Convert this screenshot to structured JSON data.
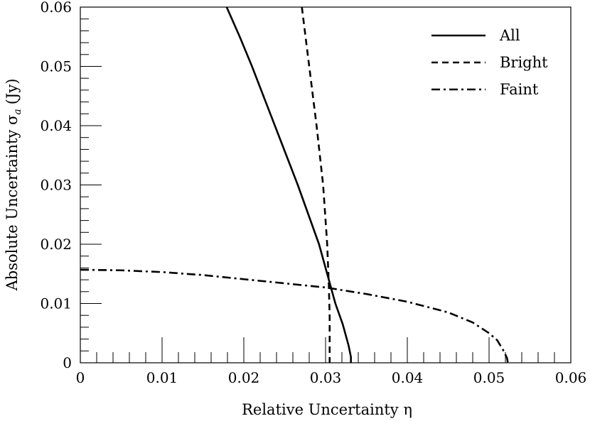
{
  "chart_data": {
    "type": "line",
    "xlabel": "Relative Uncertainty η",
    "ylabel": "Absolute Uncertainty σ",
    "ylabel_subscript": "a",
    "ylabel_unit": "(Jy)",
    "xlim": [
      0,
      0.06
    ],
    "ylim": [
      0,
      0.06
    ],
    "x_ticks": [
      "0",
      "0.01",
      "0.02",
      "0.03",
      "0.04",
      "0.05",
      "0.06"
    ],
    "y_ticks": [
      "0",
      "0.01",
      "0.02",
      "0.03",
      "0.04",
      "0.05",
      "0.06"
    ],
    "legend_position": "top-right",
    "grid": false,
    "series": [
      {
        "name": "All",
        "style": "solid",
        "color": "#000000",
        "points": [
          [
            0.0179,
            0.06
          ],
          [
            0.0195,
            0.055
          ],
          [
            0.021,
            0.05
          ],
          [
            0.0224,
            0.045
          ],
          [
            0.0238,
            0.04
          ],
          [
            0.0252,
            0.035
          ],
          [
            0.0266,
            0.03
          ],
          [
            0.0279,
            0.025
          ],
          [
            0.0292,
            0.02
          ],
          [
            0.0302,
            0.015
          ],
          [
            0.0307,
            0.0125
          ],
          [
            0.0312,
            0.01
          ],
          [
            0.0321,
            0.0065
          ],
          [
            0.0328,
            0.003
          ],
          [
            0.0331,
            0.001
          ],
          [
            0.0331,
            0.0
          ]
        ]
      },
      {
        "name": "Bright",
        "style": "dashed",
        "color": "#000000",
        "points": [
          [
            0.0271,
            0.06
          ],
          [
            0.028,
            0.05
          ],
          [
            0.0289,
            0.04
          ],
          [
            0.0297,
            0.03
          ],
          [
            0.0302,
            0.02
          ],
          [
            0.0304,
            0.013
          ],
          [
            0.0305,
            0.008
          ],
          [
            0.0305,
            0.003
          ],
          [
            0.0305,
            0.0
          ]
        ]
      },
      {
        "name": "Faint",
        "style": "dashdot",
        "color": "#000000",
        "points": [
          [
            0.0,
            0.0157
          ],
          [
            0.005,
            0.0156
          ],
          [
            0.01,
            0.0153
          ],
          [
            0.015,
            0.0148
          ],
          [
            0.02,
            0.0141
          ],
          [
            0.025,
            0.0134
          ],
          [
            0.03,
            0.0127
          ],
          [
            0.035,
            0.0116
          ],
          [
            0.04,
            0.0103
          ],
          [
            0.045,
            0.0085
          ],
          [
            0.048,
            0.0068
          ],
          [
            0.05,
            0.005
          ],
          [
            0.051,
            0.0038
          ],
          [
            0.0517,
            0.0022
          ],
          [
            0.0522,
            0.0008
          ],
          [
            0.0523,
            0.0
          ]
        ]
      }
    ]
  }
}
